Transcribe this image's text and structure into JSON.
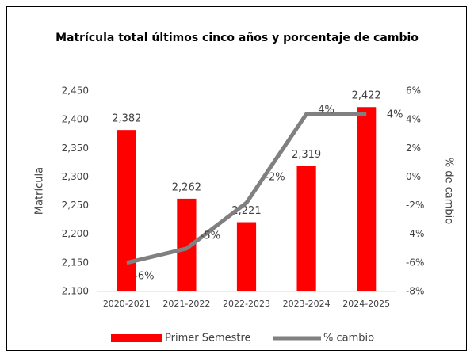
{
  "chart_data": {
    "type": "bar_line",
    "title": "Matrícula total últimos cinco años y porcentaje de cambio",
    "ylabel": "Matrícula",
    "y2label": "% de cambio",
    "categories": [
      "2020-2021",
      "2021-2022",
      "2022-2023",
      "2023-2024",
      "2024-2025"
    ],
    "series": [
      {
        "name": "Primer Semestre",
        "color": "#ff0000",
        "type": "bar",
        "values": [
          2382,
          2262,
          2221,
          2319,
          2422
        ],
        "value_labels": [
          "2,382",
          "2,262",
          "2,221",
          "2,319",
          "2,422"
        ]
      },
      {
        "name": "% cambio",
        "color": "#808080",
        "type": "line",
        "axis": "y2",
        "values": [
          -6,
          -5,
          -1.8,
          4.4,
          4.4
        ],
        "value_labels": [
          "-6%",
          "-5%",
          "-2%",
          "4%",
          "4%"
        ]
      }
    ],
    "ylim": [
      2100,
      2450
    ],
    "yticks": [
      {
        "value": 2100,
        "label": "2,100"
      },
      {
        "value": 2150,
        "label": "2,150"
      },
      {
        "value": 2200,
        "label": "2,200"
      },
      {
        "value": 2250,
        "label": "2,250"
      },
      {
        "value": 2300,
        "label": "2,300"
      },
      {
        "value": 2350,
        "label": "2,350"
      },
      {
        "value": 2400,
        "label": "2,400"
      },
      {
        "value": 2450,
        "label": "2,450"
      }
    ],
    "y2lim": [
      -8,
      6
    ],
    "y2ticks": [
      {
        "value": -8,
        "label": "-8%"
      },
      {
        "value": -6,
        "label": "-6%"
      },
      {
        "value": -4,
        "label": "-4%"
      },
      {
        "value": -2,
        "label": "-2%"
      },
      {
        "value": 0,
        "label": "0%"
      },
      {
        "value": 2,
        "label": "2%"
      },
      {
        "value": 4,
        "label": "4%"
      },
      {
        "value": 6,
        "label": "6%"
      }
    ],
    "grid": false,
    "legend": "bottom"
  }
}
